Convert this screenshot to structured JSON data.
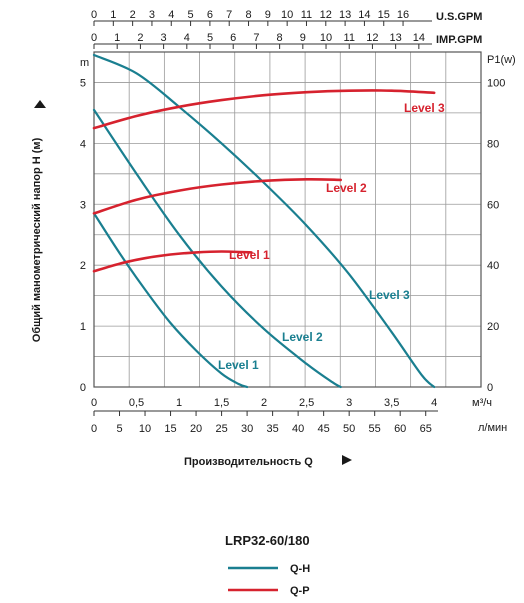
{
  "chart_data": {
    "type": "line",
    "title": "",
    "model": "LRP32-60/180",
    "xlabel": "Производительность Q",
    "ylabel": "Общий манометрический напор H (м)",
    "y_unit": "m",
    "y2_unit": "P1(w)",
    "x_unit_m3h": "м³/ч",
    "x_unit_lmin": "л/мин",
    "x_unit_usgpm": "U.S.GPM",
    "x_unit_impgpm": "IMP.GPM",
    "xlim_m3h": [
      0,
      4.55
    ],
    "ylim": [
      0,
      5.5
    ],
    "y2lim": [
      0,
      110
    ],
    "grid": true,
    "x_ticks_m3h": [
      "0",
      "0,5",
      "1",
      "1,5",
      "2",
      "2,5",
      "3",
      "3,5",
      "4"
    ],
    "x_ticks_lmin": [
      "0",
      "5",
      "10",
      "15",
      "20",
      "25",
      "30",
      "35",
      "40",
      "45",
      "50",
      "55",
      "60",
      "65"
    ],
    "x_ticks_usgpm": [
      "0",
      "1",
      "2",
      "3",
      "4",
      "5",
      "6",
      "7",
      "8",
      "9",
      "10",
      "11",
      "12",
      "13",
      "14",
      "15",
      "16"
    ],
    "x_ticks_impgpm": [
      "0",
      "1",
      "2",
      "3",
      "4",
      "5",
      "6",
      "7",
      "8",
      "9",
      "10",
      "11",
      "12",
      "13",
      "14"
    ],
    "y_ticks": [
      "0",
      "1",
      "2",
      "3",
      "4",
      "5"
    ],
    "y2_ticks": [
      "0",
      "20",
      "40",
      "60",
      "80",
      "100"
    ],
    "colors": {
      "qh": "#1a7f90",
      "qp": "#d6222e",
      "grid": "#9a9a9a"
    },
    "legend": [
      {
        "label": "Q-H",
        "color": "#1a7f90"
      },
      {
        "label": "Q-P",
        "color": "#d6222e"
      }
    ],
    "series": [
      {
        "name": "Level 1",
        "kind": "Q-H",
        "points": [
          [
            0,
            2.85
          ],
          [
            0.3,
            2.2
          ],
          [
            0.6,
            1.6
          ],
          [
            0.9,
            1.05
          ],
          [
            1.2,
            0.6
          ],
          [
            1.5,
            0.22
          ],
          [
            1.7,
            0.05
          ],
          [
            1.8,
            0
          ]
        ]
      },
      {
        "name": "Level 2",
        "kind": "Q-H",
        "points": [
          [
            0,
            4.55
          ],
          [
            0.5,
            3.5
          ],
          [
            1.0,
            2.5
          ],
          [
            1.5,
            1.65
          ],
          [
            2.0,
            0.95
          ],
          [
            2.5,
            0.38
          ],
          [
            2.8,
            0.08
          ],
          [
            2.9,
            0
          ]
        ]
      },
      {
        "name": "Level 3",
        "kind": "Q-H",
        "points": [
          [
            0,
            5.45
          ],
          [
            0.5,
            5.15
          ],
          [
            1.0,
            4.6
          ],
          [
            1.5,
            4.0
          ],
          [
            2.0,
            3.35
          ],
          [
            2.5,
            2.65
          ],
          [
            3.0,
            1.85
          ],
          [
            3.5,
            0.9
          ],
          [
            3.85,
            0.2
          ],
          [
            4.0,
            0
          ]
        ]
      },
      {
        "name": "Level 1",
        "kind": "Q-P",
        "points": [
          [
            0,
            38
          ],
          [
            0.3,
            40.5
          ],
          [
            0.6,
            42.3
          ],
          [
            0.9,
            43.5
          ],
          [
            1.2,
            44.2
          ],
          [
            1.5,
            44.5
          ],
          [
            1.85,
            44.2
          ]
        ]
      },
      {
        "name": "Level 2",
        "kind": "Q-P",
        "points": [
          [
            0,
            57
          ],
          [
            0.5,
            61.5
          ],
          [
            1.0,
            64.5
          ],
          [
            1.5,
            66.5
          ],
          [
            2.0,
            67.7
          ],
          [
            2.5,
            68.2
          ],
          [
            2.9,
            68.0
          ]
        ]
      },
      {
        "name": "Level 3",
        "kind": "Q-P",
        "points": [
          [
            0,
            85
          ],
          [
            0.5,
            89
          ],
          [
            1.0,
            92
          ],
          [
            1.5,
            94.2
          ],
          [
            2.0,
            95.8
          ],
          [
            2.5,
            96.8
          ],
          [
            3.0,
            97.3
          ],
          [
            3.5,
            97.3
          ],
          [
            4.0,
            96.6
          ]
        ]
      }
    ],
    "labels": {
      "qp_level_1": "Level 1",
      "qp_level_2": "Level 2",
      "qp_level_3": "Level 3",
      "qh_level_1": "Level 1",
      "qh_level_2": "Level 2",
      "qh_level_3": "Level 3"
    }
  }
}
